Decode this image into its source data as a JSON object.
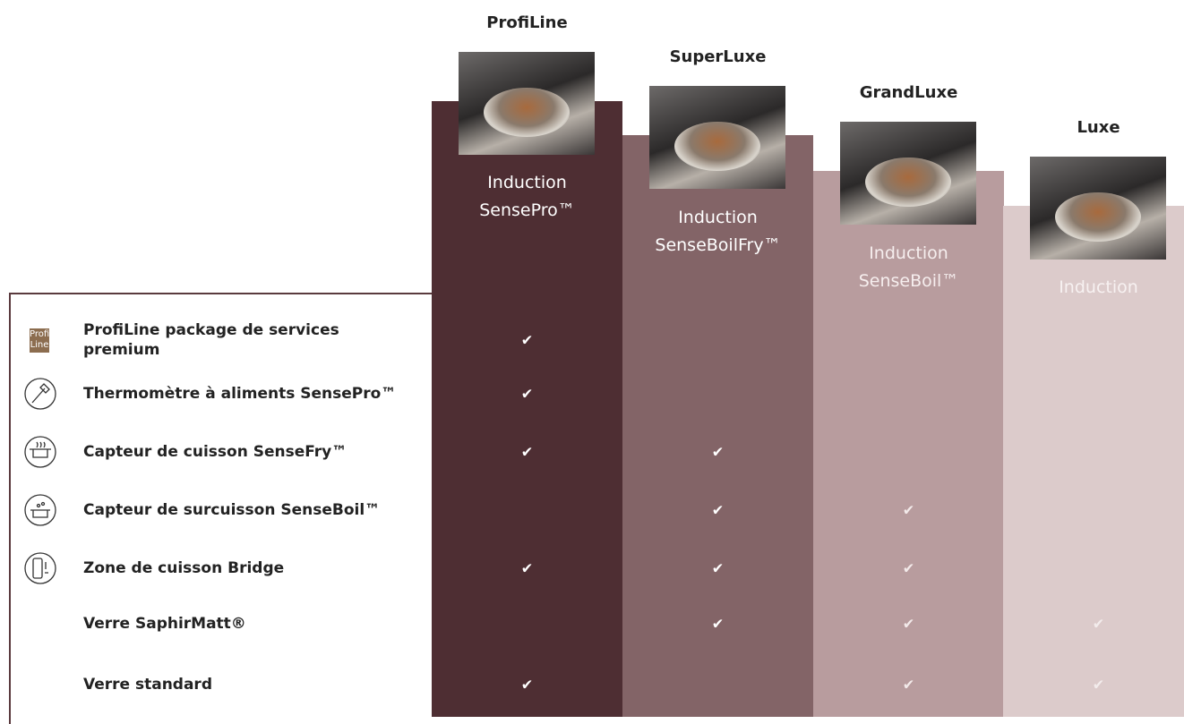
{
  "columns": [
    {
      "name": "ProfiLine",
      "subtitle": [
        "Induction",
        "SensePro™"
      ]
    },
    {
      "name": "SuperLuxe",
      "subtitle": [
        "Induction",
        "SenseBoilFry™"
      ]
    },
    {
      "name": "GrandLuxe",
      "subtitle": [
        "Induction",
        "SenseBoil™"
      ]
    },
    {
      "name": "Luxe",
      "subtitle": [
        "Induction"
      ]
    }
  ],
  "badge": [
    "Profi",
    "Line"
  ],
  "features": [
    {
      "label": "ProfiLine package de services premium",
      "checks": [
        "✔",
        null,
        null,
        null
      ]
    },
    {
      "label": "Thermomètre à aliments SensePro™",
      "checks": [
        "✔",
        null,
        null,
        null
      ]
    },
    {
      "label": "Capteur de cuisson SenseFry™",
      "checks": [
        "✔",
        "✔",
        null,
        null
      ]
    },
    {
      "label": "Capteur de surcuisson SenseBoil™",
      "checks": [
        null,
        "✔",
        "✔",
        null
      ]
    },
    {
      "label": "Zone de cuisson Bridge",
      "checks": [
        "✔",
        "✔",
        "✔",
        null
      ]
    },
    {
      "label": "Verre SaphirMatt®",
      "checks": [
        null,
        "✔",
        "✔",
        "✔"
      ]
    },
    {
      "label": "Verre standard",
      "checks": [
        "✔",
        null,
        "✔",
        "✔"
      ]
    }
  ]
}
